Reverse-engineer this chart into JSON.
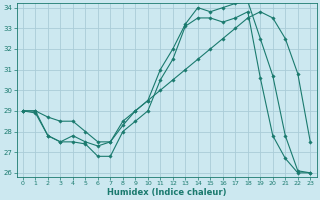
{
  "xlabel": "Humidex (Indice chaleur)",
  "background_color": "#cce8f0",
  "grid_color": "#aaccd8",
  "line_color": "#1a7a6e",
  "xlim": [
    -0.5,
    23.5
  ],
  "ylim": [
    25.8,
    34.2
  ],
  "yticks": [
    26,
    27,
    28,
    29,
    30,
    31,
    32,
    33,
    34
  ],
  "xticks": [
    0,
    1,
    2,
    3,
    4,
    5,
    6,
    7,
    8,
    9,
    10,
    11,
    12,
    13,
    14,
    15,
    16,
    17,
    18,
    19,
    20,
    21,
    22,
    23
  ],
  "series": [
    {
      "x": [
        0,
        1,
        2,
        3,
        4,
        5,
        6,
        7,
        8,
        9,
        10,
        11,
        12,
        13,
        14,
        15,
        16,
        17,
        18,
        19,
        20,
        21,
        22,
        23
      ],
      "y": [
        29,
        28.9,
        27.8,
        27.5,
        27.5,
        27.4,
        26.8,
        26.8,
        28.0,
        28.5,
        29.0,
        30.5,
        31.5,
        33.1,
        33.5,
        33.5,
        33.3,
        33.5,
        33.8,
        30.6,
        27.8,
        26.7,
        26.0,
        26.0
      ]
    },
    {
      "x": [
        0,
        1,
        2,
        3,
        4,
        5,
        6,
        7,
        8,
        9,
        10,
        11,
        12,
        13,
        14,
        15,
        16,
        17,
        18,
        19,
        20,
        21,
        22,
        23
      ],
      "y": [
        29,
        29,
        27.8,
        27.5,
        27.8,
        27.5,
        27.3,
        27.5,
        28.3,
        29.0,
        29.5,
        31.0,
        32.0,
        33.2,
        34.0,
        33.8,
        34.0,
        34.2,
        34.3,
        32.5,
        30.7,
        27.8,
        26.1,
        26.0
      ]
    },
    {
      "x": [
        0,
        1,
        2,
        3,
        4,
        5,
        6,
        7,
        8,
        9,
        10,
        11,
        12,
        13,
        14,
        15,
        16,
        17,
        18,
        19,
        20,
        21,
        22,
        23
      ],
      "y": [
        29,
        29,
        28.7,
        28.5,
        28.5,
        28.0,
        27.5,
        27.5,
        28.5,
        29.0,
        29.5,
        30.0,
        30.5,
        31.0,
        31.5,
        32.0,
        32.5,
        33.0,
        33.5,
        33.8,
        33.5,
        32.5,
        30.8,
        27.5
      ]
    }
  ]
}
